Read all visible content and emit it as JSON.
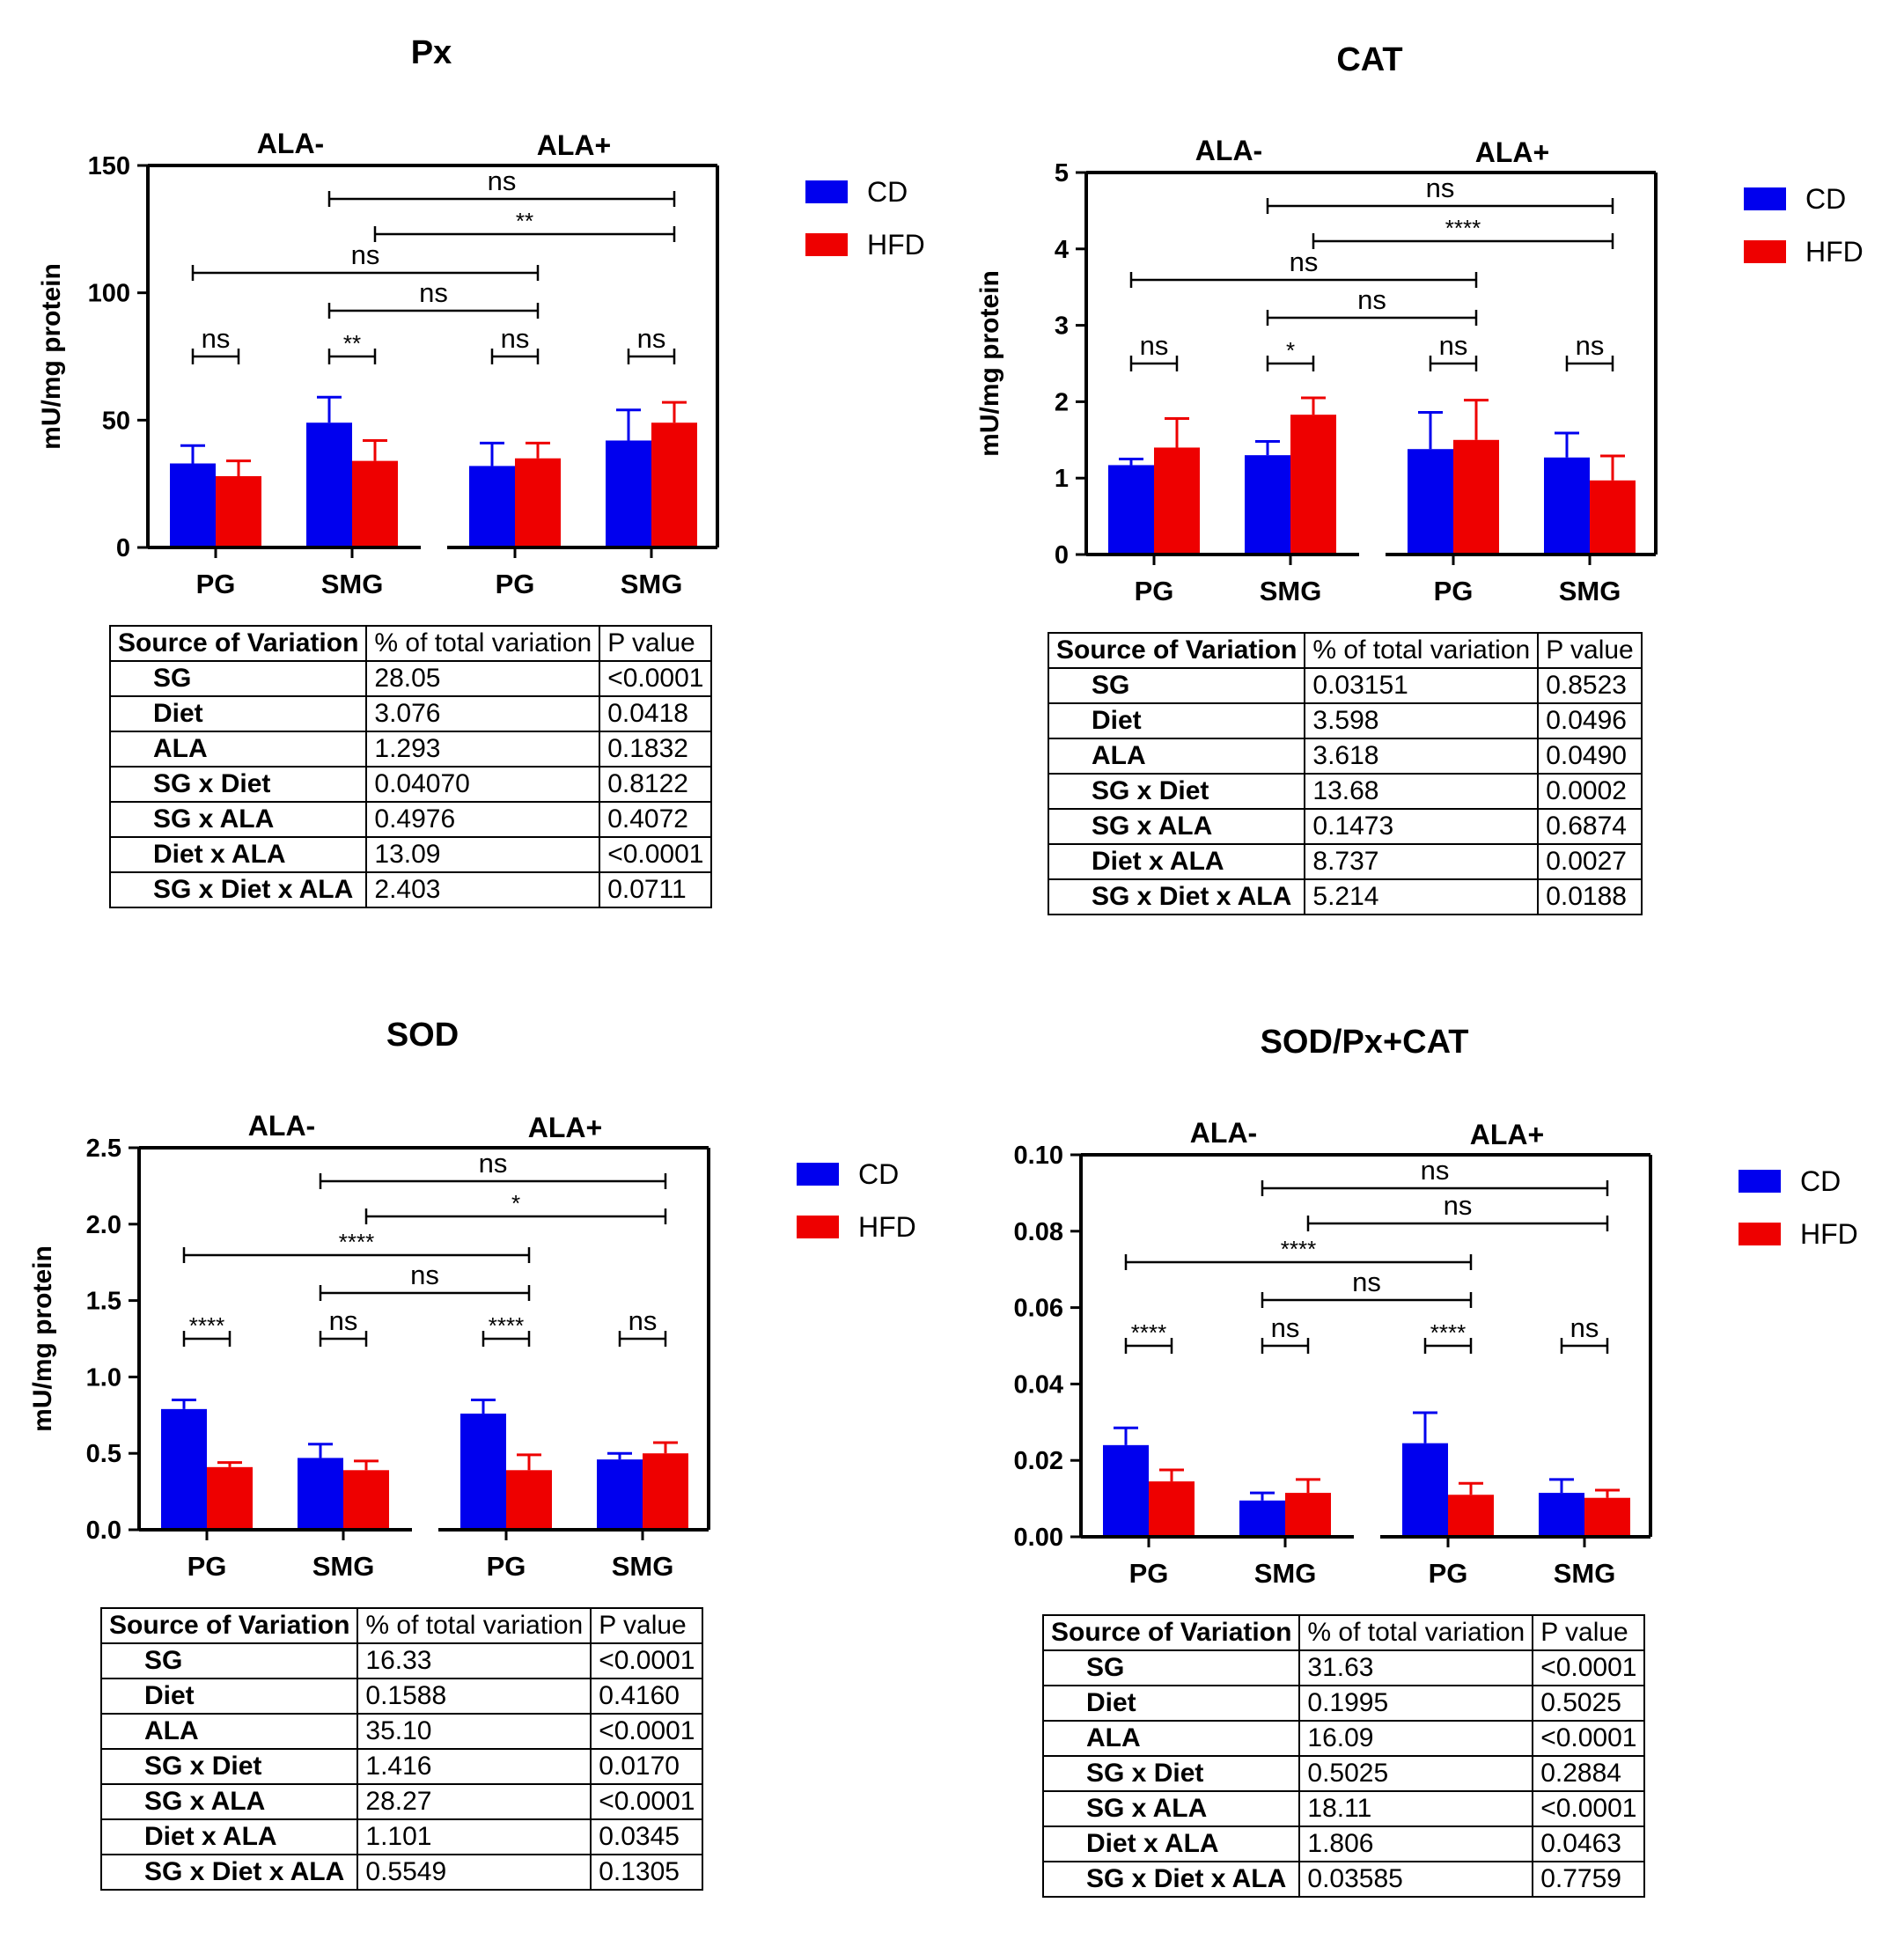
{
  "table_headers": [
    "Source of Variation",
    "% of total variation",
    "P value"
  ],
  "colors": {
    "CD": "#0000ee",
    "HFD": "#ee0000"
  },
  "chart_data": [
    {
      "type": "bar",
      "title": "Px",
      "ylabel": "mU/mg protein",
      "ylim": [
        0,
        150
      ],
      "yticks": [
        "0",
        "50",
        "100",
        "150"
      ],
      "group_labels": [
        "ALA-",
        "ALA+"
      ],
      "categories": [
        "PG",
        "SMG",
        "PG",
        "SMG"
      ],
      "legend": [
        "CD",
        "HFD"
      ],
      "series": [
        {
          "name": "CD",
          "values": [
            33,
            49,
            32,
            42
          ],
          "errors": [
            7,
            10,
            9,
            12
          ]
        },
        {
          "name": "HFD",
          "values": [
            28,
            34,
            35,
            49
          ],
          "errors": [
            6,
            8,
            6,
            8
          ]
        }
      ],
      "pair_marks": [
        "ns",
        "**",
        "ns",
        "ns"
      ],
      "cross_marks": [
        {
          "label": "ns",
          "from": [
            0,
            0
          ],
          "to": [
            2,
            1
          ]
        },
        {
          "label": "ns",
          "from": [
            1,
            0
          ],
          "to": [
            2,
            1
          ]
        },
        {
          "label": "ns",
          "from": [
            1,
            0
          ],
          "to": [
            3,
            1
          ]
        },
        {
          "label": "**",
          "from": [
            1,
            1
          ],
          "to": [
            3,
            1
          ]
        }
      ],
      "table": [
        [
          "SG",
          "28.05",
          "<0.0001"
        ],
        [
          "Diet",
          "3.076",
          "0.0418"
        ],
        [
          "ALA",
          "1.293",
          "0.1832"
        ],
        [
          "SG x Diet",
          "0.04070",
          "0.8122"
        ],
        [
          "SG x ALA",
          "0.4976",
          "0.4072"
        ],
        [
          "Diet x ALA",
          "13.09",
          "<0.0001"
        ],
        [
          "SG x Diet x ALA",
          "2.403",
          "0.0711"
        ]
      ]
    },
    {
      "type": "bar",
      "title": "CAT",
      "ylabel": "mU/mg protein",
      "ylim": [
        0,
        5
      ],
      "yticks": [
        "0",
        "1",
        "2",
        "3",
        "4",
        "5"
      ],
      "group_labels": [
        "ALA-",
        "ALA+"
      ],
      "categories": [
        "PG",
        "SMG",
        "PG",
        "SMG"
      ],
      "legend": [
        "CD",
        "HFD"
      ],
      "series": [
        {
          "name": "CD",
          "values": [
            1.17,
            1.3,
            1.38,
            1.27
          ],
          "errors": [
            0.08,
            0.18,
            0.48,
            0.32
          ]
        },
        {
          "name": "HFD",
          "values": [
            1.4,
            1.83,
            1.5,
            0.97
          ],
          "errors": [
            0.38,
            0.22,
            0.52,
            0.32
          ]
        }
      ],
      "pair_marks": [
        "ns",
        "*",
        "ns",
        "ns"
      ],
      "cross_marks": [
        {
          "label": "ns",
          "from": [
            0,
            0
          ],
          "to": [
            2,
            1
          ]
        },
        {
          "label": "ns",
          "from": [
            1,
            0
          ],
          "to": [
            2,
            1
          ]
        },
        {
          "label": "ns",
          "from": [
            1,
            0
          ],
          "to": [
            3,
            1
          ]
        },
        {
          "label": "****",
          "from": [
            1,
            1
          ],
          "to": [
            3,
            1
          ]
        }
      ],
      "table": [
        [
          "SG",
          "0.03151",
          "0.8523"
        ],
        [
          "Diet",
          "3.598",
          "0.0496"
        ],
        [
          "ALA",
          "3.618",
          "0.0490"
        ],
        [
          "SG x Diet",
          "13.68",
          "0.0002"
        ],
        [
          "SG x ALA",
          "0.1473",
          "0.6874"
        ],
        [
          "Diet x ALA",
          "8.737",
          "0.0027"
        ],
        [
          "SG x Diet x ALA",
          "5.214",
          "0.0188"
        ]
      ]
    },
    {
      "type": "bar",
      "title": "SOD",
      "ylabel": "mU/mg protein",
      "ylim": [
        0,
        2.5
      ],
      "yticks": [
        "0.0",
        "0.5",
        "1.0",
        "1.5",
        "2.0",
        "2.5"
      ],
      "group_labels": [
        "ALA-",
        "ALA+"
      ],
      "categories": [
        "PG",
        "SMG",
        "PG",
        "SMG"
      ],
      "legend": [
        "CD",
        "HFD"
      ],
      "series": [
        {
          "name": "CD",
          "values": [
            0.79,
            0.47,
            0.76,
            0.46
          ],
          "errors": [
            0.06,
            0.09,
            0.09,
            0.04
          ]
        },
        {
          "name": "HFD",
          "values": [
            0.41,
            0.39,
            0.39,
            0.5
          ],
          "errors": [
            0.03,
            0.06,
            0.1,
            0.07
          ]
        }
      ],
      "pair_marks": [
        "****",
        "ns",
        "****",
        "ns"
      ],
      "cross_marks": [
        {
          "label": "****",
          "from": [
            0,
            0
          ],
          "to": [
            2,
            1
          ]
        },
        {
          "label": "ns",
          "from": [
            1,
            0
          ],
          "to": [
            2,
            1
          ]
        },
        {
          "label": "ns",
          "from": [
            1,
            0
          ],
          "to": [
            3,
            1
          ]
        },
        {
          "label": "*",
          "from": [
            1,
            1
          ],
          "to": [
            3,
            1
          ]
        }
      ],
      "table": [
        [
          "SG",
          "16.33",
          "<0.0001"
        ],
        [
          "Diet",
          "0.1588",
          "0.4160"
        ],
        [
          "ALA",
          "35.10",
          "<0.0001"
        ],
        [
          "SG x Diet",
          "1.416",
          "0.0170"
        ],
        [
          "SG x ALA",
          "28.27",
          "<0.0001"
        ],
        [
          "Diet x ALA",
          "1.101",
          "0.0345"
        ],
        [
          "SG x Diet x ALA",
          "0.5549",
          "0.1305"
        ]
      ]
    },
    {
      "type": "bar",
      "title": "SOD/Px+CAT",
      "ylabel": "",
      "ylim": [
        0,
        0.1
      ],
      "yticks": [
        "0.00",
        "0.02",
        "0.04",
        "0.06",
        "0.08",
        "0.10"
      ],
      "group_labels": [
        "ALA-",
        "ALA+"
      ],
      "categories": [
        "PG",
        "SMG",
        "PG",
        "SMG"
      ],
      "legend": [
        "CD",
        "HFD"
      ],
      "series": [
        {
          "name": "CD",
          "values": [
            0.024,
            0.0095,
            0.0245,
            0.0115
          ],
          "errors": [
            0.0045,
            0.002,
            0.008,
            0.0035
          ]
        },
        {
          "name": "HFD",
          "values": [
            0.0145,
            0.0115,
            0.011,
            0.0102
          ],
          "errors": [
            0.003,
            0.0035,
            0.003,
            0.002
          ]
        }
      ],
      "pair_marks": [
        "****",
        "ns",
        "****",
        "ns"
      ],
      "cross_marks": [
        {
          "label": "****",
          "from": [
            0,
            0
          ],
          "to": [
            2,
            1
          ]
        },
        {
          "label": "ns",
          "from": [
            1,
            0
          ],
          "to": [
            2,
            1
          ]
        },
        {
          "label": "ns",
          "from": [
            1,
            0
          ],
          "to": [
            3,
            1
          ]
        },
        {
          "label": "ns",
          "from": [
            1,
            1
          ],
          "to": [
            3,
            1
          ]
        }
      ],
      "table": [
        [
          "SG",
          "31.63",
          "<0.0001"
        ],
        [
          "Diet",
          "0.1995",
          "0.5025"
        ],
        [
          "ALA",
          "16.09",
          "<0.0001"
        ],
        [
          "SG x Diet",
          "0.5025",
          "0.2884"
        ],
        [
          "SG x ALA",
          "18.11",
          "<0.0001"
        ],
        [
          "Diet x ALA",
          "1.806",
          "0.0463"
        ],
        [
          "SG x Diet x ALA",
          "0.03585",
          "0.7759"
        ]
      ]
    }
  ]
}
